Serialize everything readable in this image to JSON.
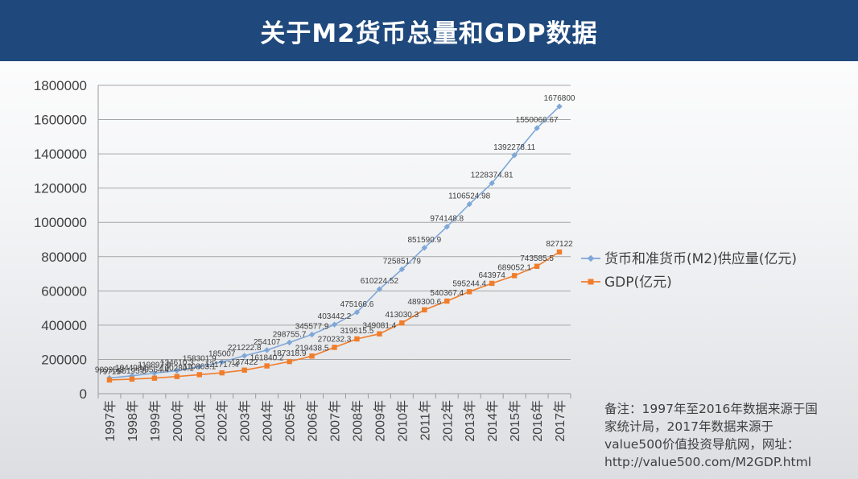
{
  "title": "关于M2货币总量和GDP数据",
  "chart_data": {
    "type": "line",
    "title": "关于M2货币总量和GDP数据",
    "categories": [
      "1997年",
      "1998年",
      "1999年",
      "2000年",
      "2001年",
      "2002年",
      "2003年",
      "2004年",
      "2005年",
      "2006年",
      "2007年",
      "2008年",
      "2009年",
      "2010年",
      "2011年",
      "2012年",
      "2013年",
      "2014年",
      "2015年",
      "2016年",
      "2017年"
    ],
    "ylim": [
      0,
      1800000
    ],
    "yticks": [
      "0",
      "200000",
      "400000",
      "600000",
      "800000",
      "1000000",
      "1200000",
      "1400000",
      "1600000",
      "1800000"
    ],
    "grid": true,
    "legend_position": "right",
    "series": [
      {
        "name": "货币和准货币(M2)供应量(亿元)",
        "color": "#7fa7d8",
        "values": [
          90995.3,
          104498.5,
          119897.9,
          134610.3,
          158301.9,
          185007,
          221222.8,
          254107,
          298755.7,
          345577.9,
          403442.2,
          475166.6,
          610224.52,
          725851.79,
          851590.9,
          974148.8,
          1106524.98,
          1228374.81,
          1392278.11,
          1550066.67,
          1676800
        ],
        "labels": [
          "90995.3",
          "104498.5",
          "119897.9",
          "134610.3",
          "158301.9",
          "185007",
          "221222.8",
          "254107",
          "298755.7",
          "345577.9",
          "403442.2",
          "475166.6",
          "610224.52",
          "725851.79",
          "851590.9",
          "974148.8",
          "1106524.98",
          "1228374.81",
          "1392278.11",
          "1550066.67",
          "1676800"
        ]
      },
      {
        "name": "GDP(亿元)",
        "color": "#f07d2c",
        "values": [
          79715,
          85195.5,
          90564.4,
          100280.1,
          110863.1,
          121717.4,
          137422,
          161840.2,
          187318.9,
          219438.5,
          270232.3,
          319515.5,
          349081.4,
          413030.3,
          489300.6,
          540367.4,
          595244.4,
          643974,
          689052.1,
          743585.5,
          827122
        ],
        "labels": [
          "79715",
          "85195.5",
          "90564.4",
          "100280.1",
          "110863.1",
          "121717.4",
          "137422",
          "161840.2",
          "187318.9",
          "219438.5",
          "270232.3",
          "319515.5",
          "349081.4",
          "413030.3",
          "489300.6",
          "540367.4",
          "595244.4",
          "643974",
          "689052.1",
          "743585.5",
          "827122"
        ]
      }
    ]
  },
  "note": {
    "lines": [
      "备注：1997年至2016年数据来源于国",
      "家统计局，2017年数据来源于",
      "value500价值投资导航网，网址：",
      "http://value500.com/M2GDP.html"
    ]
  }
}
